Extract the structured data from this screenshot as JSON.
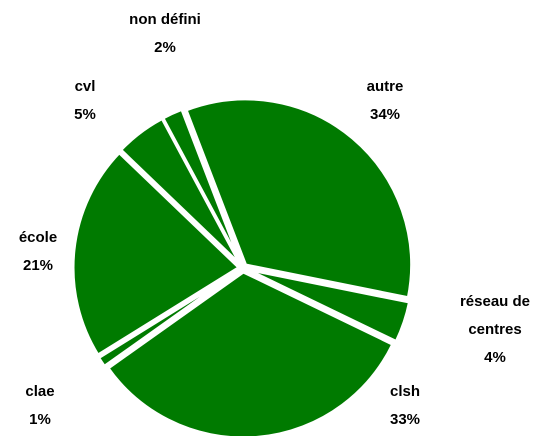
{
  "chart_data": {
    "type": "pie",
    "categories": [
      "autre",
      "réseau de centres",
      "clsh",
      "clae",
      "école",
      "cvl",
      "non défini"
    ],
    "values": [
      34,
      4,
      33,
      1,
      21,
      5,
      2
    ],
    "value_labels": [
      "34%",
      "4%",
      "33%",
      "1%",
      "21%",
      "5%",
      "2%"
    ],
    "color": "#007a00"
  }
}
